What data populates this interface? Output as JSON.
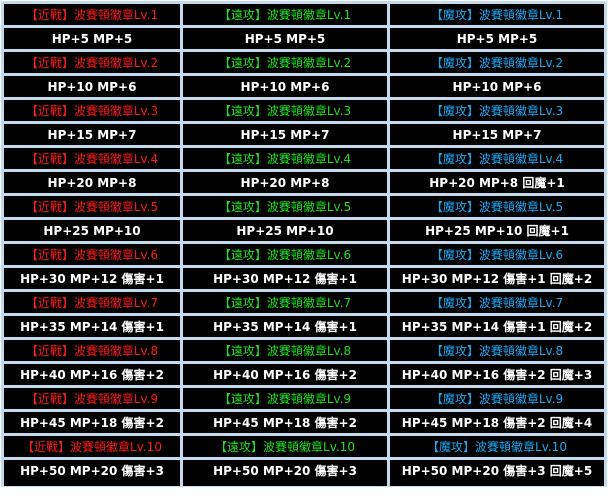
{
  "colors": {
    "melee": "#ff1a1a",
    "ranged": "#1fe01f",
    "magic": "#1ea8f0",
    "stat": "#ffffff",
    "border": "#c3d9ee"
  },
  "rows": [
    {
      "names": [
        "【近戰】波賽頓徽章Lv.1",
        "【遠攻】波賽頓徽章Lv.1",
        "【魔攻】波賽頓徽章Lv.1"
      ],
      "stats": [
        "HP+5 MP+5",
        "HP+5 MP+5",
        "HP+5 MP+5"
      ]
    },
    {
      "names": [
        "【近戰】波賽頓徽章Lv.2",
        "【遠攻】波賽頓徽章Lv.2",
        "【魔攻】波賽頓徽章Lv.2"
      ],
      "stats": [
        "HP+10 MP+6",
        "HP+10 MP+6",
        "HP+10 MP+6"
      ]
    },
    {
      "names": [
        "【近戰】波賽頓徽章Lv.3",
        "【遠攻】波賽頓徽章Lv.3",
        "【魔攻】波賽頓徽章Lv.3"
      ],
      "stats": [
        "HP+15 MP+7",
        "HP+15 MP+7",
        "HP+15 MP+7"
      ]
    },
    {
      "names": [
        "【近戰】波賽頓徽章Lv.4",
        "【遠攻】波賽頓徽章Lv.4",
        "【魔攻】波賽頓徽章Lv.4"
      ],
      "stats": [
        "HP+20 MP+8",
        "HP+20 MP+8",
        "HP+20 MP+8 回魔+1"
      ]
    },
    {
      "names": [
        "【近戰】波賽頓徽章Lv.5",
        "【遠攻】波賽頓徽章Lv.5",
        "【魔攻】波賽頓徽章Lv.5"
      ],
      "stats": [
        "HP+25 MP+10",
        "HP+25 MP+10",
        "HP+25 MP+10 回魔+1"
      ]
    },
    {
      "names": [
        "【近戰】波賽頓徽章Lv.6",
        "【遠攻】波賽頓徽章Lv.6",
        "【魔攻】波賽頓徽章Lv.6"
      ],
      "stats": [
        "HP+30 MP+12 傷害+1",
        "HP+30 MP+12 傷害+1",
        "HP+30 MP+12 傷害+1 回魔+2"
      ]
    },
    {
      "names": [
        "【近戰】波賽頓徽章Lv.7",
        "【遠攻】波賽頓徽章Lv.7",
        "【魔攻】波賽頓徽章Lv.7"
      ],
      "stats": [
        "HP+35 MP+14 傷害+1",
        "HP+35 MP+14 傷害+1",
        "HP+35 MP+14 傷害+1 回魔+2"
      ]
    },
    {
      "names": [
        "【近戰】波賽頓徽章Lv.8",
        "【遠攻】波賽頓徽章Lv.8",
        "【魔攻】波賽頓徽章Lv.8"
      ],
      "stats": [
        "HP+40 MP+16 傷害+2",
        "HP+40 MP+16 傷害+2",
        "HP+40 MP+16 傷害+2 回魔+3"
      ]
    },
    {
      "names": [
        "【近戰】波賽頓徽章Lv.9",
        "【遠攻】波賽頓徽章Lv.9",
        "【魔攻】波賽頓徽章Lv.9"
      ],
      "stats": [
        "HP+45 MP+18 傷害+2",
        "HP+45 MP+18 傷害+2",
        "HP+45 MP+18 傷害+2 回魔+4"
      ]
    },
    {
      "names": [
        "【近戰】波賽頓徽章Lv.10",
        "【遠攻】波賽頓徽章Lv.10",
        "【魔攻】波賽頓徽章Lv.10"
      ],
      "stats": [
        "HP+50 MP+20 傷害+3",
        "HP+50 MP+20 傷害+3",
        "HP+50 MP+20 傷害+3 回魔+5"
      ]
    }
  ]
}
